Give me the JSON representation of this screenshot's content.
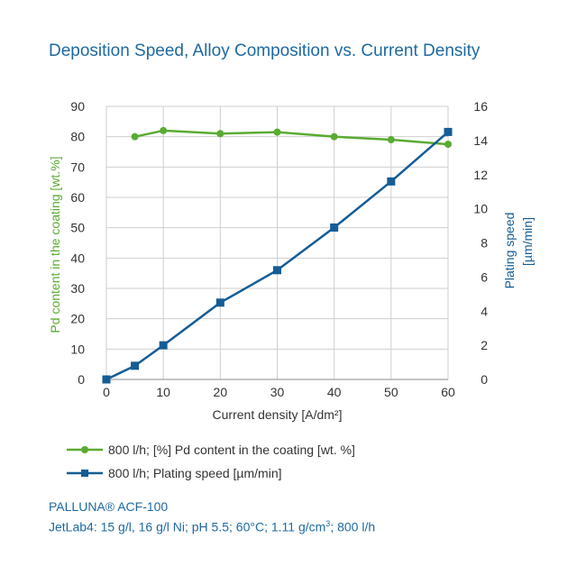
{
  "title": "Deposition Speed, Alloy Composition vs. Current Density",
  "colors": {
    "green": "#5aab32",
    "blue": "#145d96",
    "grid": "#cfcfcf",
    "text": "#333333"
  },
  "chart_data": {
    "type": "line",
    "title": "Deposition Speed, Alloy Composition vs. Current Density",
    "xlabel": "Current density [A/dm²]",
    "ylabel_left": "Pd content in the coating [wt.%]",
    "ylabel_right_line1": "Plating speed",
    "ylabel_right_line2": "[µm/min]",
    "xlim": [
      0,
      60
    ],
    "ylim_left": [
      0,
      90
    ],
    "ylim_right": [
      0,
      16
    ],
    "x_ticks": [
      0,
      10,
      20,
      30,
      40,
      50,
      60
    ],
    "y_left_ticks": [
      0,
      10,
      20,
      30,
      40,
      50,
      60,
      70,
      80,
      90
    ],
    "y_right_ticks": [
      0,
      2,
      4,
      6,
      8,
      10,
      12,
      14,
      16
    ],
    "grid": true,
    "legend_position": "bottom",
    "series": [
      {
        "name": "800 l/h; [%] Pd content in the coating [wt. %]",
        "axis": "left",
        "marker": "circle",
        "x": [
          5,
          10,
          20,
          30,
          40,
          50,
          60
        ],
        "y": [
          80,
          82,
          81,
          81.5,
          80,
          79,
          77.5
        ]
      },
      {
        "name": "800 l/h; Plating speed [µm/min]",
        "axis": "right",
        "marker": "square",
        "x": [
          0,
          5,
          10,
          20,
          30,
          40,
          50,
          60
        ],
        "y": [
          0,
          0.8,
          2.0,
          4.5,
          6.4,
          8.9,
          11.6,
          14.5
        ]
      }
    ]
  },
  "footer": {
    "product": "PALLUNA® ACF-100",
    "conditions_prefix": "JetLab4: 15 g/l, 16 g/l Ni; pH 5.5; 60°C; 1.11 g/cm",
    "conditions_sup": "3",
    "conditions_suffix": "; 800 l/h"
  }
}
